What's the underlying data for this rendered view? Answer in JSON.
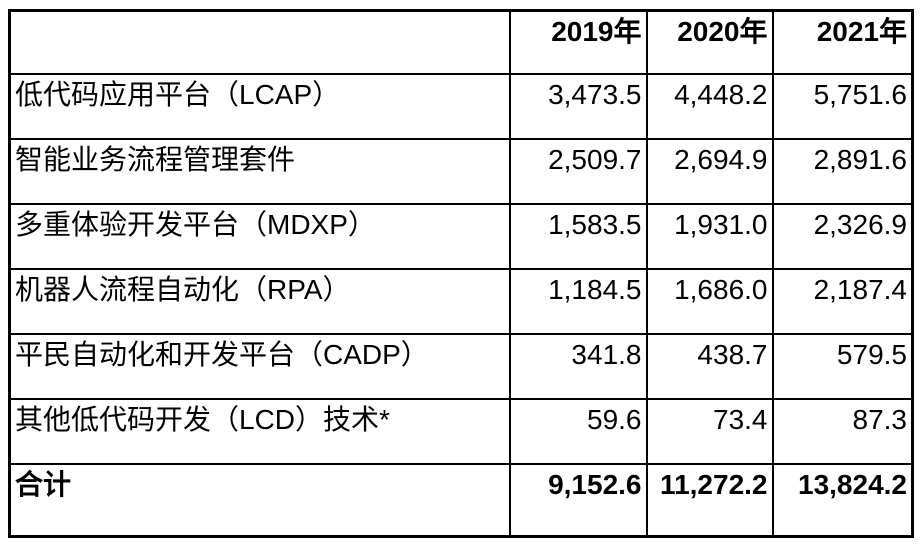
{
  "table": {
    "header": {
      "corner": "",
      "columns": [
        "2019年",
        "2020年",
        "2021年"
      ]
    },
    "rows": [
      {
        "label": "低代码应用平台（LCAP）",
        "values": [
          "3,473.5",
          "4,448.2",
          "5,751.6"
        ]
      },
      {
        "label": "智能业务流程管理套件",
        "values": [
          "2,509.7",
          "2,694.9",
          "2,891.6"
        ]
      },
      {
        "label": "多重体验开发平台（MDXP）",
        "values": [
          "1,583.5",
          "1,931.0",
          "2,326.9"
        ]
      },
      {
        "label": "机器人流程自动化（RPA）",
        "values": [
          "1,184.5",
          "1,686.0",
          "2,187.4"
        ]
      },
      {
        "label": "平民自动化和开发平台（CADP）",
        "values": [
          "341.8",
          "438.7",
          "579.5"
        ]
      },
      {
        "label": "其他低代码开发（LCD）技术*",
        "values": [
          "59.6",
          "73.4",
          "87.3"
        ]
      }
    ],
    "total_row": {
      "label": "合计",
      "values": [
        "9,152.6",
        "11,272.2",
        "13,824.2"
      ]
    }
  },
  "colors": {
    "background": "#ffffff",
    "text": "#000000",
    "border": "#000000"
  }
}
